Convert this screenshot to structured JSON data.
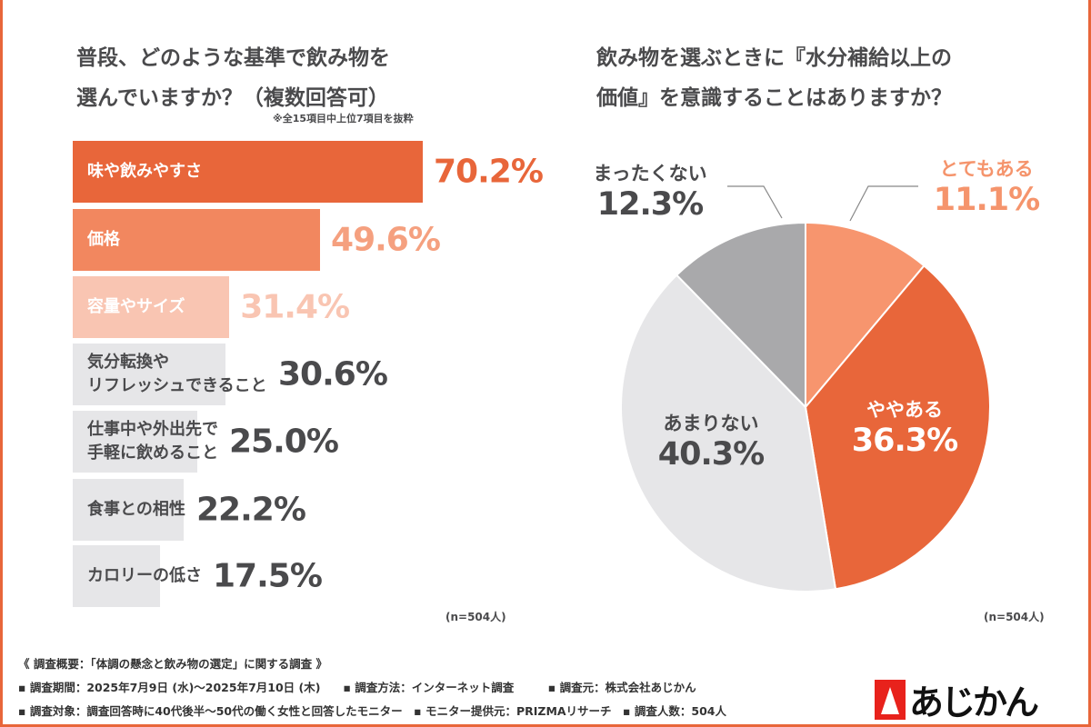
{
  "left": {
    "title_line1": "普段、どのような基準で飲み物を",
    "title_line2": "選んでいますか？（複数回答可）",
    "note": "※全15項目中上位7項目を抜粋",
    "n": "(n=504人)"
  },
  "right": {
    "title_line1": "飲み物を選ぶときに『水分補給以上の",
    "title_line2": "価値』を意識することはありますか？",
    "n": "(n=504人)"
  },
  "chart_data": [
    {
      "type": "bar",
      "orientation": "horizontal",
      "categories": [
        "味や飲みやすさ",
        "価格",
        "容量やサイズ",
        "気分転換や\nリフレッシュできること",
        "仕事中や外出先で\n手軽に飲めること",
        "食事との相性",
        "カロリーの低さ"
      ],
      "values": [
        70.2,
        49.6,
        31.4,
        30.6,
        25.0,
        22.2,
        17.5
      ],
      "value_labels": [
        "70.2%",
        "49.6%",
        "31.4%",
        "30.6%",
        "25.0%",
        "22.2%",
        "17.5%"
      ],
      "bar_colors": [
        "#E8663A",
        "#F2875F",
        "#F9C5B2",
        "#E6E6E8",
        "#E6E6E8",
        "#E6E6E8",
        "#E6E6E8"
      ],
      "label_colors": [
        "#ffffff",
        "#ffffff",
        "#ffffff",
        "#4a4a4c",
        "#4a4a4c",
        "#4a4a4c",
        "#4a4a4c"
      ],
      "value_colors": [
        "#E8663A",
        "#F5A07F",
        "#F9C5B2",
        "#4a4a4c",
        "#4a4a4c",
        "#4a4a4c",
        "#4a4a4c"
      ]
    },
    {
      "type": "pie",
      "categories": [
        "とてもある",
        "ややある",
        "あまりない",
        "まったくない"
      ],
      "values": [
        11.1,
        36.3,
        40.3,
        12.3
      ],
      "value_labels": [
        "11.1%",
        "36.3%",
        "40.3%",
        "12.3%"
      ],
      "colors": [
        "#F7956E",
        "#E8663A",
        "#E6E6E8",
        "#A9A9AB"
      ],
      "label_colors": [
        "#F5946C",
        "#ffffff",
        "#4a4a4c",
        "#4a4a4c"
      ],
      "start": "top",
      "direction": "clockwise"
    }
  ],
  "footer": {
    "line1": "《 調査概要：「体調の懸念と飲み物の選定」に関する調査 》",
    "line2": "▪ 調査期間：2025年7月9日 (水)～2025年7月10日 (木)　　▪ 調査方法：インターネット調査　　　▪ 調査元：株式会社あじかん",
    "line3": "▪ 調査対象：調査回答時に40代後半～50代の働く女性と回答したモニター　▪ モニター提供元：PRIZMAリサーチ　▪ 調査人数：504人"
  },
  "logo": {
    "text": "あじかん"
  }
}
